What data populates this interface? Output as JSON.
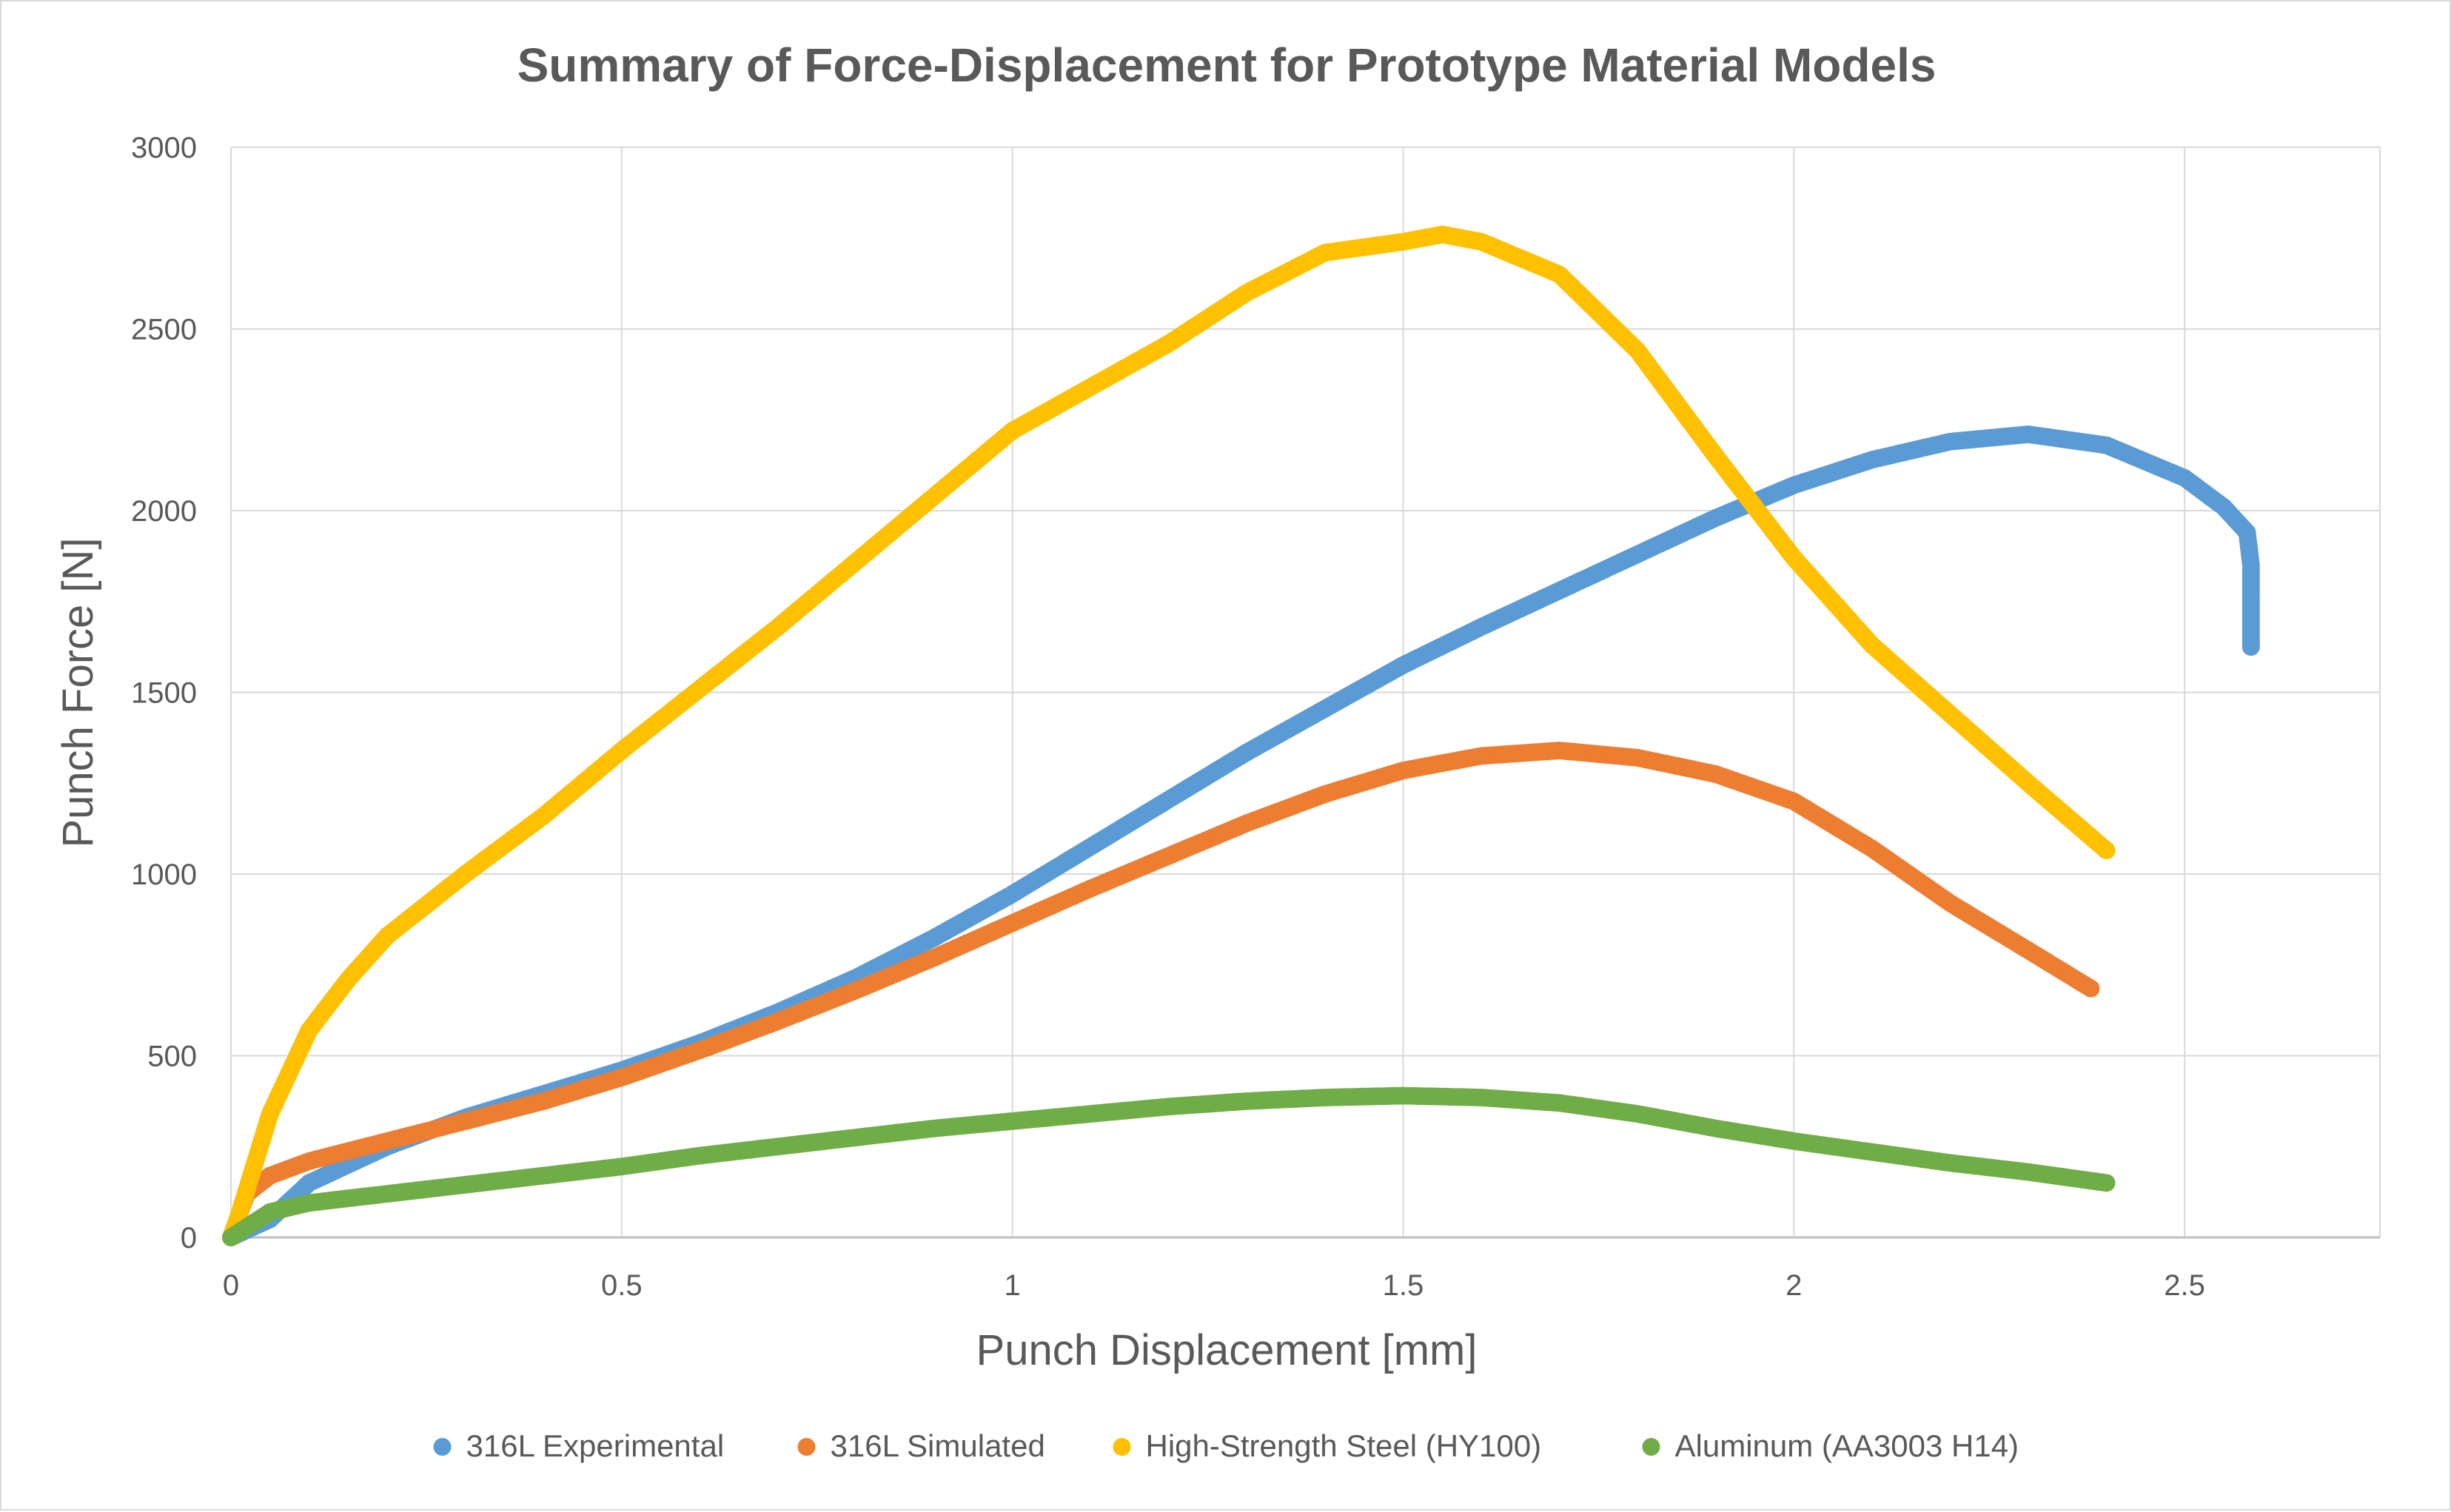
{
  "chart_data": {
    "type": "scatter",
    "title": "Summary of Force-Displacement for Prototype Material Models",
    "xlabel": "Punch Displacement [mm]",
    "ylabel": "Punch Force [N]",
    "xlim": [
      0,
      2.75
    ],
    "ylim": [
      0,
      3000
    ],
    "xticks": [
      0,
      0.5,
      1,
      1.5,
      2,
      2.5
    ],
    "xtick_labels": [
      "0",
      "0.5",
      "1",
      "1.5",
      "2",
      "2.5"
    ],
    "yticks": [
      0,
      500,
      1000,
      1500,
      2000,
      2500,
      3000
    ],
    "ytick_labels": [
      "0",
      "500",
      "1000",
      "1500",
      "2000",
      "2500",
      "3000"
    ],
    "grid": true,
    "legend_position": "bottom",
    "series": [
      {
        "name": "316L Experimental",
        "color": "#5b9bd5",
        "points": [
          [
            0,
            0
          ],
          [
            0.05,
            50
          ],
          [
            0.1,
            150
          ],
          [
            0.2,
            250
          ],
          [
            0.3,
            330
          ],
          [
            0.4,
            395
          ],
          [
            0.5,
            460
          ],
          [
            0.6,
            535
          ],
          [
            0.7,
            620
          ],
          [
            0.8,
            715
          ],
          [
            0.9,
            825
          ],
          [
            1.0,
            945
          ],
          [
            1.1,
            1075
          ],
          [
            1.2,
            1205
          ],
          [
            1.3,
            1335
          ],
          [
            1.4,
            1455
          ],
          [
            1.5,
            1575
          ],
          [
            1.6,
            1680
          ],
          [
            1.7,
            1780
          ],
          [
            1.8,
            1880
          ],
          [
            1.9,
            1980
          ],
          [
            2.0,
            2070
          ],
          [
            2.1,
            2140
          ],
          [
            2.2,
            2190
          ],
          [
            2.3,
            2210
          ],
          [
            2.4,
            2180
          ],
          [
            2.5,
            2090
          ],
          [
            2.55,
            2010
          ],
          [
            2.58,
            1940
          ],
          [
            2.585,
            1850
          ],
          [
            2.585,
            1760
          ],
          [
            2.585,
            1680
          ],
          [
            2.585,
            1625
          ]
        ]
      },
      {
        "name": "316L Simulated",
        "color": "#ed7d31",
        "points": [
          [
            0,
            0
          ],
          [
            0.02,
            120
          ],
          [
            0.05,
            170
          ],
          [
            0.1,
            210
          ],
          [
            0.2,
            265
          ],
          [
            0.3,
            320
          ],
          [
            0.4,
            375
          ],
          [
            0.5,
            440
          ],
          [
            0.6,
            515
          ],
          [
            0.7,
            595
          ],
          [
            0.8,
            680
          ],
          [
            0.9,
            770
          ],
          [
            1.0,
            865
          ],
          [
            1.1,
            960
          ],
          [
            1.2,
            1050
          ],
          [
            1.3,
            1140
          ],
          [
            1.4,
            1220
          ],
          [
            1.5,
            1285
          ],
          [
            1.6,
            1325
          ],
          [
            1.7,
            1340
          ],
          [
            1.8,
            1320
          ],
          [
            1.9,
            1275
          ],
          [
            2.0,
            1200
          ],
          [
            2.1,
            1070
          ],
          [
            2.2,
            920
          ],
          [
            2.3,
            790
          ],
          [
            2.38,
            685
          ]
        ]
      },
      {
        "name": "High-Strength Steel (HY100)",
        "color": "#ffc000",
        "points": [
          [
            0,
            0
          ],
          [
            0.01,
            60
          ],
          [
            0.02,
            130
          ],
          [
            0.05,
            340
          ],
          [
            0.1,
            570
          ],
          [
            0.15,
            710
          ],
          [
            0.2,
            830
          ],
          [
            0.3,
            1000
          ],
          [
            0.4,
            1160
          ],
          [
            0.5,
            1340
          ],
          [
            0.6,
            1510
          ],
          [
            0.7,
            1680
          ],
          [
            0.8,
            1860
          ],
          [
            0.9,
            2040
          ],
          [
            1.0,
            2220
          ],
          [
            1.1,
            2340
          ],
          [
            1.2,
            2460
          ],
          [
            1.3,
            2600
          ],
          [
            1.4,
            2710
          ],
          [
            1.5,
            2740
          ],
          [
            1.55,
            2760
          ],
          [
            1.6,
            2740
          ],
          [
            1.7,
            2650
          ],
          [
            1.8,
            2440
          ],
          [
            1.9,
            2150
          ],
          [
            2.0,
            1870
          ],
          [
            2.1,
            1630
          ],
          [
            2.2,
            1440
          ],
          [
            2.3,
            1250
          ],
          [
            2.4,
            1065
          ]
        ]
      },
      {
        "name": "Aluminum (AA3003 H14)",
        "color": "#70ad47",
        "points": [
          [
            0,
            0
          ],
          [
            0.05,
            70
          ],
          [
            0.1,
            95
          ],
          [
            0.2,
            120
          ],
          [
            0.3,
            145
          ],
          [
            0.4,
            170
          ],
          [
            0.5,
            195
          ],
          [
            0.6,
            225
          ],
          [
            0.7,
            250
          ],
          [
            0.8,
            275
          ],
          [
            0.9,
            300
          ],
          [
            1.0,
            320
          ],
          [
            1.1,
            340
          ],
          [
            1.2,
            360
          ],
          [
            1.3,
            375
          ],
          [
            1.4,
            385
          ],
          [
            1.5,
            390
          ],
          [
            1.6,
            385
          ],
          [
            1.7,
            370
          ],
          [
            1.8,
            340
          ],
          [
            1.9,
            300
          ],
          [
            2.0,
            265
          ],
          [
            2.1,
            235
          ],
          [
            2.2,
            205
          ],
          [
            2.3,
            180
          ],
          [
            2.4,
            150
          ]
        ]
      }
    ]
  }
}
